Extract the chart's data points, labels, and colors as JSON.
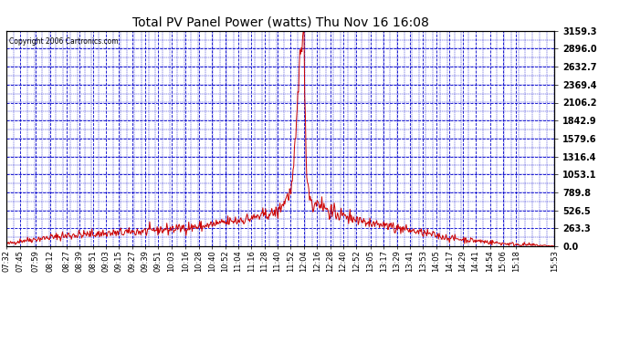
{
  "title": "Total PV Panel Power (watts) Thu Nov 16 16:08",
  "copyright_text": "Copyright 2006 Cartronics.com",
  "background_color": "#FFFFFF",
  "plot_bg_color": "#FFFFFF",
  "grid_color": "#0000CC",
  "line_color": "#CC0000",
  "ytick_labels": [
    "0.0",
    "263.3",
    "526.5",
    "789.8",
    "1053.1",
    "1316.4",
    "1579.6",
    "1842.9",
    "2106.2",
    "2369.4",
    "2632.7",
    "2896.0",
    "3159.3"
  ],
  "ymax": 3159.3,
  "ymin": 0.0,
  "xtick_labels": [
    "07:32",
    "07:45",
    "07:59",
    "08:12",
    "08:27",
    "08:39",
    "08:51",
    "09:03",
    "09:15",
    "09:27",
    "09:39",
    "09:51",
    "10:03",
    "10:16",
    "10:28",
    "10:40",
    "10:52",
    "11:04",
    "11:16",
    "11:28",
    "11:40",
    "11:52",
    "12:04",
    "12:16",
    "12:28",
    "12:40",
    "12:52",
    "13:05",
    "13:17",
    "13:29",
    "13:41",
    "13:53",
    "14:05",
    "14:17",
    "14:29",
    "14:41",
    "14:54",
    "15:06",
    "15:18",
    "15:53"
  ]
}
